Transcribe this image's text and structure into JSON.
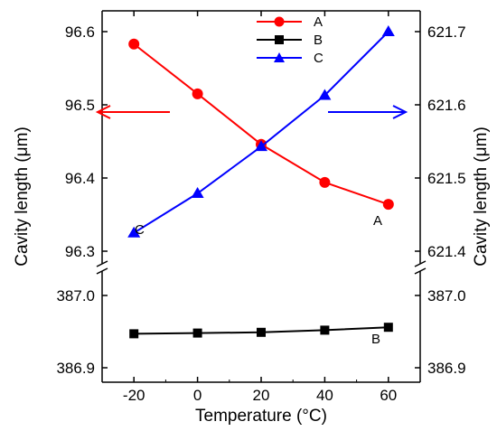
{
  "chart_data": {
    "type": "line",
    "xlabel": "Temperature (°C)",
    "ylabel_left": "Cavity length (μm)",
    "ylabel_right": "Cavity length (μm)",
    "x": [
      -20,
      0,
      20,
      40,
      60
    ],
    "xlim": [
      -30,
      70
    ],
    "x_ticks": [
      "-20",
      "0",
      "20",
      "40",
      "60"
    ],
    "upper_left_ylim": [
      96.3,
      96.6
    ],
    "upper_left_ticks": [
      "96.6",
      "96.5",
      "96.4",
      "96.3"
    ],
    "upper_right_ylim": [
      621.4,
      621.7
    ],
    "upper_right_ticks": [
      "621.7",
      "621.6",
      "621.5",
      "621.4"
    ],
    "lower_ylim": [
      386.88,
      387.03
    ],
    "lower_left_ticks": [
      "387.0",
      "386.9"
    ],
    "lower_right_ticks": [
      "387.0",
      "386.9"
    ],
    "series": [
      {
        "name": "A",
        "color": "#ff0000",
        "marker": "circle",
        "axis": "upper-left",
        "values": [
          96.583,
          96.515,
          96.446,
          96.394,
          96.364
        ]
      },
      {
        "name": "B",
        "color": "#000000",
        "marker": "square",
        "axis": "lower",
        "values": [
          386.947,
          386.948,
          386.949,
          386.952,
          386.956
        ]
      },
      {
        "name": "C",
        "color": "#0000ff",
        "marker": "triangle",
        "axis": "upper-right",
        "values": [
          621.425,
          621.479,
          621.543,
          621.613,
          621.7
        ]
      }
    ],
    "annotations": {
      "label_a": "A",
      "label_b": "B",
      "label_c": "C"
    },
    "arrows": [
      {
        "direction": "left",
        "color": "#ff0000",
        "meaning": "left axis"
      },
      {
        "direction": "right",
        "color": "#0000ff",
        "meaning": "right axis"
      }
    ],
    "legend_placement": "top-center",
    "grid": false
  }
}
